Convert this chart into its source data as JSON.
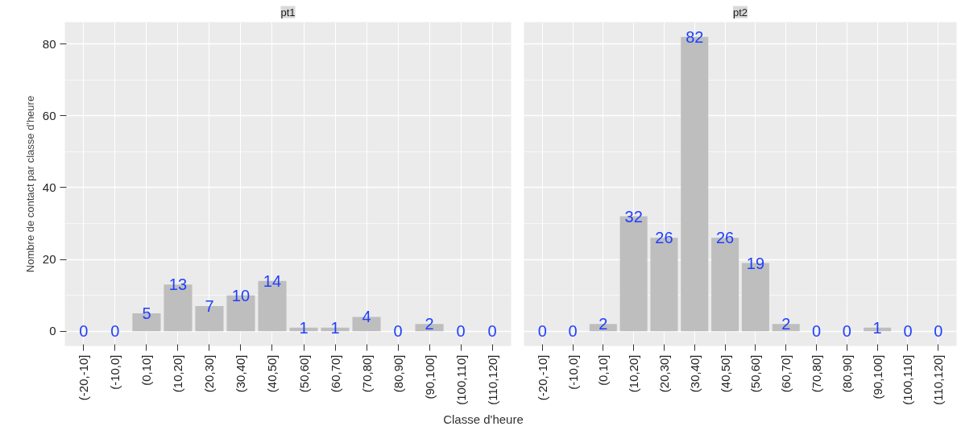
{
  "chart_data": [
    {
      "type": "bar",
      "title": "pt1",
      "xlabel": "Classe d'heure",
      "ylabel": "Nombre de contact par classe d'heure",
      "categories": [
        "(-20,-10]",
        "(-10,0]",
        "(0,10]",
        "(10,20]",
        "(20,30]",
        "(30,40]",
        "(40,50]",
        "(50,60]",
        "(60,70]",
        "(70,80]",
        "(80,90]",
        "(90,100]",
        "(100,110]",
        "(110,120]"
      ],
      "values": [
        0,
        0,
        5,
        13,
        7,
        10,
        14,
        1,
        1,
        4,
        0,
        2,
        0,
        0
      ],
      "color": "#bebebe",
      "ylim": [
        -4.1,
        86.1
      ],
      "yticks": [
        0,
        20,
        40,
        60,
        80
      ],
      "grid": true,
      "data_labels": true
    },
    {
      "type": "bar",
      "title": "pt2",
      "categories": [
        "(-20,-10]",
        "(-10,0]",
        "(0,10]",
        "(10,20]",
        "(20,30]",
        "(30,40]",
        "(40,50]",
        "(50,60]",
        "(60,70]",
        "(70,80]",
        "(80,90]",
        "(90,100]",
        "(100,110]",
        "(110,120]"
      ],
      "values": [
        0,
        0,
        2,
        32,
        26,
        82,
        26,
        19,
        2,
        0,
        0,
        1,
        0,
        0
      ],
      "color": "#bebebe",
      "ylim": [
        -4.1,
        86.1
      ],
      "yticks": [
        0,
        20,
        40,
        60,
        80
      ],
      "grid": true,
      "data_labels": true,
      "tick_labels": "x"
    }
  ]
}
